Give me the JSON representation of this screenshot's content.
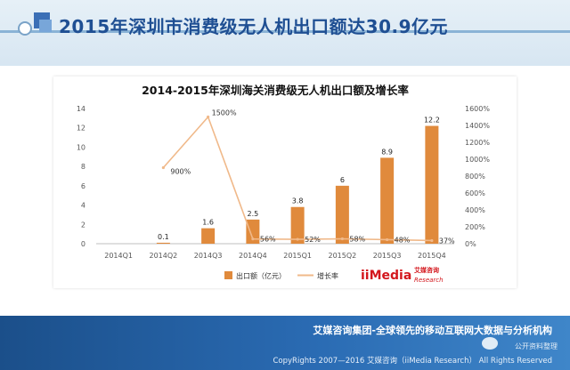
{
  "header": {
    "title": "2015年深圳市消费级无人机出口额达30.9亿元"
  },
  "chart_data": {
    "type": "bar",
    "title": "2014-2015年深圳海关消费级无人机出口额及增长率",
    "categories": [
      "2014Q1",
      "2014Q2",
      "2014Q3",
      "2014Q4",
      "2015Q1",
      "2015Q2",
      "2015Q3",
      "2015Q4"
    ],
    "y_left_ticks": [
      "0",
      "2",
      "4",
      "6",
      "8",
      "10",
      "12",
      "14"
    ],
    "y_right_ticks": [
      "0%",
      "200%",
      "400%",
      "600%",
      "800%",
      "1000%",
      "1200%",
      "1400%",
      "1600%"
    ],
    "ylim_left": [
      0,
      14
    ],
    "ylim_right": [
      0,
      1600
    ],
    "series": [
      {
        "name": "出口额（亿元）",
        "type": "bar",
        "color": "#e08a3c",
        "values": [
          null,
          0.1,
          1.6,
          2.5,
          3.8,
          6,
          8.9,
          12.2
        ],
        "labels": [
          "",
          "0.1",
          "1.6",
          "2.5",
          "3.8",
          "6",
          "8.9",
          "12.2"
        ]
      },
      {
        "name": "增长率",
        "type": "line",
        "color": "#f0b98a",
        "values": [
          null,
          900,
          1500,
          56,
          52,
          58,
          48,
          37
        ],
        "labels": [
          "",
          "900%",
          "1500%",
          "56%",
          "52%",
          "58%",
          "48%",
          "37%"
        ]
      }
    ],
    "legend_position": "bottom"
  },
  "logo": {
    "brand_main": "iiMedia",
    "brand_cn": "艾媒咨询",
    "brand_sub": "Research"
  },
  "footer": {
    "line1": "艾媒咨询集团-全球领先的移动互联网大数据与分析机构",
    "line2": "CopyRights 2007—2016 艾媒咨询（iiMedia Research） All Rights Reserved"
  },
  "watermark": {
    "text": "公开资料整理"
  }
}
